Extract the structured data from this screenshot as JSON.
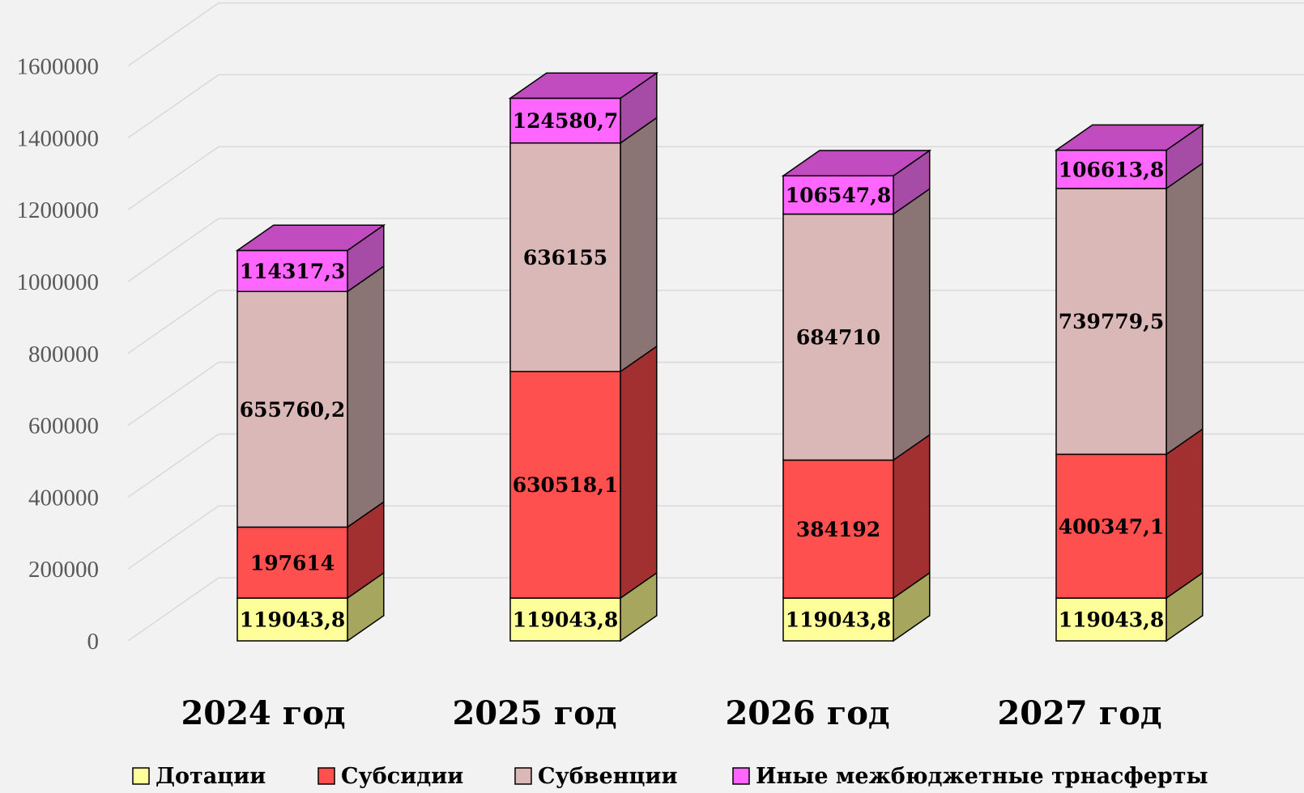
{
  "chart_data": {
    "type": "bar",
    "stacked": true,
    "three_d": true,
    "categories": [
      "2024 год",
      "2025 год",
      "2026 год",
      "2027 год"
    ],
    "series": [
      {
        "name": "Дотации",
        "values": [
          119043.8,
          119043.8,
          119043.8,
          119043.8
        ],
        "labels": [
          "119043,8",
          "119043,8",
          "119043,8",
          "119043,8"
        ],
        "color_front": "#ffff99",
        "color_side": "#a6a65f",
        "color_top": "#cccc7a"
      },
      {
        "name": "Субсидии",
        "values": [
          197614,
          630518.1,
          384192,
          400347.1
        ],
        "labels": [
          "197614",
          "630518,1",
          "384192",
          "400347,1"
        ],
        "color_front": "#ff5050",
        "color_side": "#a33030",
        "color_top": "#cc4040"
      },
      {
        "name": "Субвенции",
        "values": [
          655760.2,
          636155,
          684710,
          739779.5
        ],
        "labels": [
          "655760,2",
          "636155",
          "684710",
          "739779,5"
        ],
        "color_front": "#dbb8b8",
        "color_side": "#8a7474",
        "color_top": "#b09292"
      },
      {
        "name": "Иные межбюджетные трнасферты",
        "values": [
          114317.3,
          124580.7,
          106547.8,
          106613.8
        ],
        "labels": [
          "114317,3",
          "124580,7",
          "106547,8",
          "106613,8"
        ],
        "color_front": "#ff66ff",
        "color_side": "#a64ca6",
        "color_top": "#c04cc0"
      }
    ],
    "y_ticks": [
      "0",
      "200000",
      "400000",
      "600000",
      "800000",
      "1000000",
      "1200000",
      "1400000",
      "1600000"
    ],
    "ylim": [
      0,
      1800000
    ],
    "grid": true,
    "legend_position": "bottom"
  }
}
